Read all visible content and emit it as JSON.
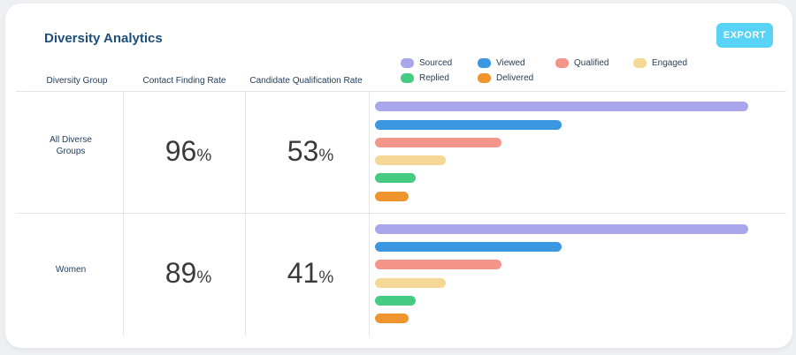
{
  "header": {
    "title": "Diversity Analytics",
    "export_label": "EXPORT"
  },
  "columns": {
    "group": "Diversity Group",
    "contact": "Contact Finding Rate",
    "qualification": "Candidate Qualification Rate"
  },
  "legend": [
    {
      "label": "Sourced",
      "color": "#aaa6ec"
    },
    {
      "label": "Viewed",
      "color": "#3a97e0"
    },
    {
      "label": "Qualified",
      "color": "#f4958a"
    },
    {
      "label": "Engaged",
      "color": "#f5d895"
    },
    {
      "label": "Replied",
      "color": "#46cc82"
    },
    {
      "label": "Delivered",
      "color": "#f0952e"
    }
  ],
  "rows": [
    {
      "group": "All Diverse Groups",
      "contact_rate": "96",
      "qualification_rate": "53",
      "pct_symbol": "%",
      "bars": {
        "sourced": 1.0,
        "viewed": 0.5,
        "qualified": 0.34,
        "engaged": 0.19,
        "replied": 0.11,
        "delivered": 0.09
      }
    },
    {
      "group": "Women",
      "contact_rate": "89",
      "qualification_rate": "41",
      "pct_symbol": "%",
      "bars": {
        "sourced": 1.0,
        "viewed": 0.5,
        "qualified": 0.34,
        "engaged": 0.19,
        "replied": 0.11,
        "delivered": 0.09
      }
    }
  ]
}
